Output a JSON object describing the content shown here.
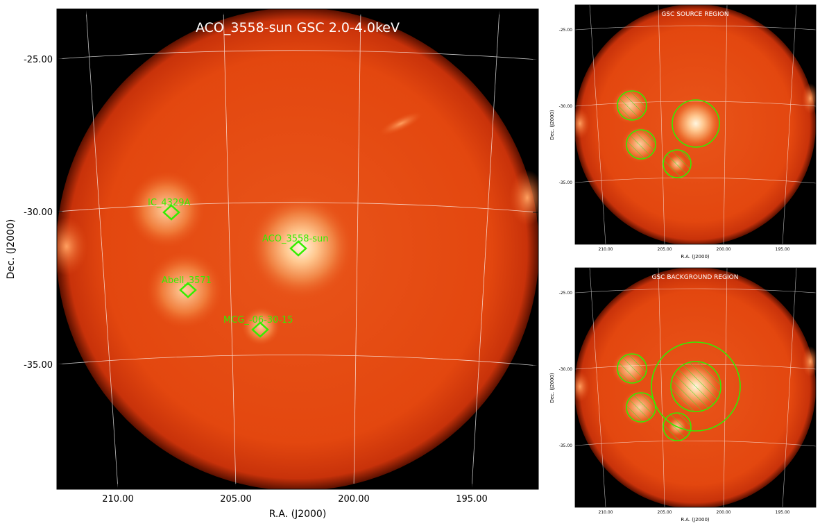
{
  "main": {
    "title": "ACO_3558-sun GSC 2.0-4.0keV",
    "xlabel": "R.A. (J2000)",
    "ylabel": "Dec. (J2000)",
    "xticks": [
      "210.00",
      "205.00",
      "200.00",
      "195.00"
    ],
    "yticks": [
      "-25.00",
      "-30.00",
      "-35.00"
    ],
    "sources": [
      {
        "name": "IC_4329A"
      },
      {
        "name": "ACO_3558-sun"
      },
      {
        "name": "Abell_3571"
      },
      {
        "name": "MCG_-06-30-15"
      }
    ]
  },
  "source_panel": {
    "title": "GSC SOURCE REGION",
    "xlabel": "R.A. (J2000)",
    "ylabel": "Dec. (J2000)",
    "xticks": [
      "210.00",
      "205.00",
      "200.00",
      "195.00"
    ],
    "yticks": [
      "-25.00",
      "-30.00",
      "-35.00"
    ]
  },
  "background_panel": {
    "title": "GSC BACKGROUND REGION",
    "xlabel": "R.A. (J2000)",
    "ylabel": "Dec. (J2000)",
    "xticks": [
      "210.00",
      "205.00",
      "200.00",
      "195.00"
    ],
    "yticks": [
      "-25.00",
      "-30.00",
      "-35.00"
    ]
  },
  "colors": {
    "field": "#e0420c",
    "source_core": "#fff4d8",
    "region": "#33ee00",
    "grid": "#ffffff"
  }
}
